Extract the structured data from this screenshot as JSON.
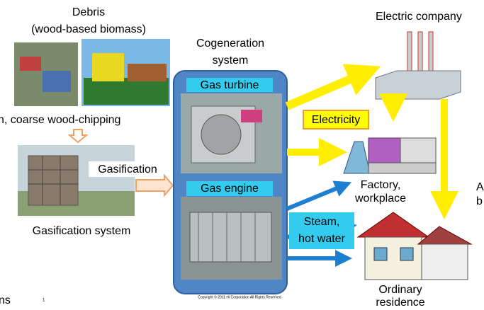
{
  "debris": {
    "title": "Debris",
    "subtitle": "(wood-based biomass)"
  },
  "chipping": "n, coarse wood-chipping",
  "gasification": {
    "arrow_label": "Gasification",
    "system_label": "Gasification system"
  },
  "cogeneration": {
    "title_line1": "Cogeneration",
    "title_line2": "system",
    "gas_turbine": "Gas turbine",
    "gas_engine": "Gas engine",
    "copyright": "Copyright © 2011 Hi Corporation All Rights Reserved"
  },
  "electricity": "Electricity",
  "steam": {
    "line1": "Steam,",
    "line2": "hot water"
  },
  "electric_company": "Electric company",
  "factory": {
    "line1": "Factory,",
    "line2": "workplace"
  },
  "residence": {
    "line1": "Ordinary",
    "line2": "residence"
  },
  "edge_texts": {
    "right1": "A",
    "right2": "b",
    "bottom_left": "ns",
    "page_number": "1"
  }
}
